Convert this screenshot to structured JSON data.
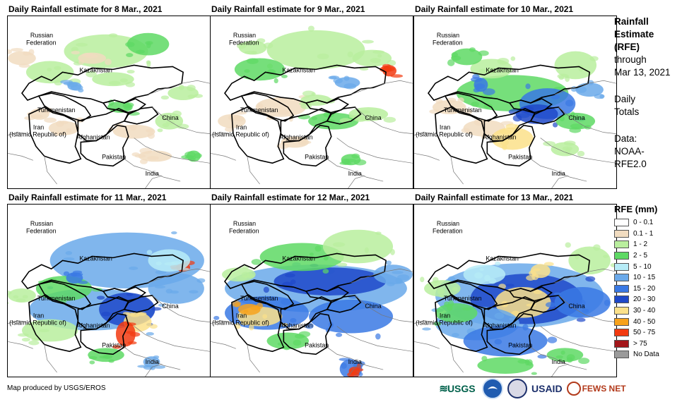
{
  "panels": [
    {
      "title": "Daily Rainfall estimate for 8 Mar., 2021",
      "day": 8
    },
    {
      "title": "Daily Rainfall estimate for 9 Mar., 2021",
      "day": 9
    },
    {
      "title": "Daily Rainfall estimate for 10 Mar., 2021",
      "day": 10
    },
    {
      "title": "Daily Rainfall estimate for 11 Mar., 2021",
      "day": 11
    },
    {
      "title": "Daily Rainfall estimate for 12 Mar., 2021",
      "day": 12
    },
    {
      "title": "Daily Rainfall estimate for 13 Mar., 2021",
      "day": 13
    }
  ],
  "country_labels": {
    "russia_line1": "Russian",
    "russia_line2": "Federation",
    "kazakhstan": "Kazakhstan",
    "turkmenistan": "Turkmenistan",
    "iran_line1": "Iran",
    "iran_line2": "(Islamic Republic of)",
    "afghanistan": "Afghanistan",
    "pakistan": "Pakistan",
    "china": "China",
    "india": "India"
  },
  "side": {
    "title_line1": "Rainfall",
    "title_line2": "Estimate",
    "title_line3": "(RFE)",
    "through": "through",
    "date": "Mar 13, 2021",
    "totals_line1": "Daily",
    "totals_line2": "Totals",
    "data_line1": "Data:",
    "data_line2": "NOAA-",
    "data_line3": "RFE2.0"
  },
  "legend": {
    "title": "RFE (mm)",
    "items": [
      {
        "label": "0 - 0.1",
        "color": "#ffffff"
      },
      {
        "label": "0.1 - 1",
        "color": "#f1dcc0"
      },
      {
        "label": "1 - 2",
        "color": "#b9ee9e"
      },
      {
        "label": "2 - 5",
        "color": "#5ed964"
      },
      {
        "label": "5 - 10",
        "color": "#b7ecf7"
      },
      {
        "label": "10 - 15",
        "color": "#6aa9ea"
      },
      {
        "label": "15 - 20",
        "color": "#3a79e4"
      },
      {
        "label": "20 - 30",
        "color": "#1f49c9"
      },
      {
        "label": "30 - 40",
        "color": "#fbe18a"
      },
      {
        "label": "40 - 50",
        "color": "#f7a21c"
      },
      {
        "label": "50 - 75",
        "color": "#f23a10"
      },
      {
        "label": "> 75",
        "color": "#a3171b"
      },
      {
        "label": "No Data",
        "color": "#9a9a9a"
      }
    ]
  },
  "credit": "Map produced by USGS/EROS",
  "logos": {
    "usgs": "USGS",
    "noaa": "NOAA",
    "usaid": "USAID",
    "fewsnet": "FEWS NET"
  }
}
